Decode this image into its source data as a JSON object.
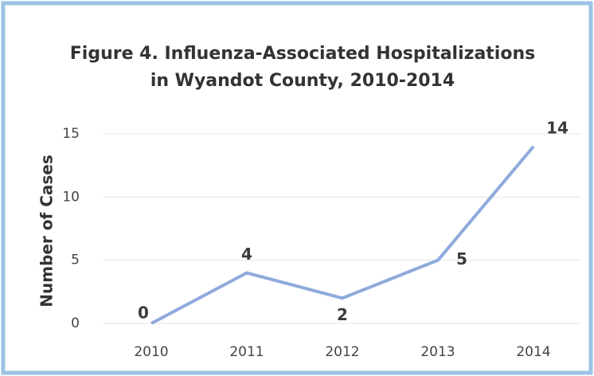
{
  "chart_data": {
    "type": "line",
    "title": "Figure 4. Influenza-Associated Hospitalizations",
    "subtitle": "in Wyandot County, 2010-2014",
    "y_label": "Number of Cases",
    "categories": [
      "2010",
      "2011",
      "2012",
      "2013",
      "2014"
    ],
    "values": [
      0,
      4,
      2,
      5,
      14
    ],
    "color": "#8faadc",
    "ylim": [
      0,
      15
    ],
    "yticks": [
      0,
      5,
      10,
      15
    ],
    "grid": true
  }
}
